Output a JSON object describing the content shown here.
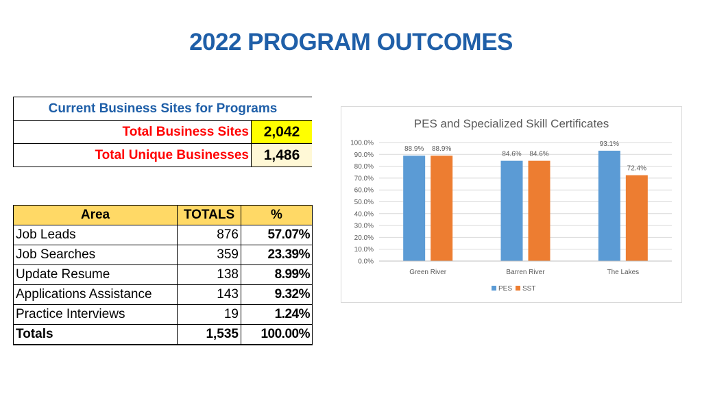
{
  "title": "2022 PROGRAM OUTCOMES",
  "sites": {
    "header": "Current Business Sites for Programs",
    "rows": [
      {
        "label": "Total Business Sites",
        "value": "2,042"
      },
      {
        "label": "Total Unique Businesses",
        "value": "1,486"
      }
    ]
  },
  "area_table": {
    "headers": [
      "Area",
      "TOTALS",
      "%"
    ],
    "rows": [
      [
        "Job Leads",
        "876",
        "57.07%"
      ],
      [
        "Job Searches",
        "359",
        "23.39%"
      ],
      [
        "Update Resume",
        "138",
        "8.99%"
      ],
      [
        "Applications Assistance",
        "143",
        "9.32%"
      ],
      [
        "Practice Interviews",
        "19",
        "1.24%"
      ]
    ],
    "total": [
      "Totals",
      "1,535",
      "100.00%"
    ]
  },
  "colors": {
    "title": "#1f5fa8",
    "pes": "#5b9bd5",
    "sst": "#ed7d31",
    "highlight": "#ffff00",
    "header": "#ffd966"
  },
  "chart_data": {
    "type": "bar",
    "title": "PES and Specialized Skill Certificates",
    "categories": [
      "Green River",
      "Barren River",
      "The Lakes"
    ],
    "series": [
      {
        "name": "PES",
        "values": [
          88.9,
          84.6,
          93.1
        ],
        "labels": [
          "88.9%",
          "84.6%",
          "93.1%"
        ]
      },
      {
        "name": "SST",
        "values": [
          88.9,
          84.6,
          72.4
        ],
        "labels": [
          "88.9%",
          "84.6%",
          "72.4%"
        ]
      }
    ],
    "ylim": [
      0,
      100
    ],
    "yticks": [
      "0.0%",
      "10.0%",
      "20.0%",
      "30.0%",
      "40.0%",
      "50.0%",
      "60.0%",
      "70.0%",
      "80.0%",
      "90.0%",
      "100.0%"
    ],
    "grid": true,
    "legend": "bottom"
  }
}
